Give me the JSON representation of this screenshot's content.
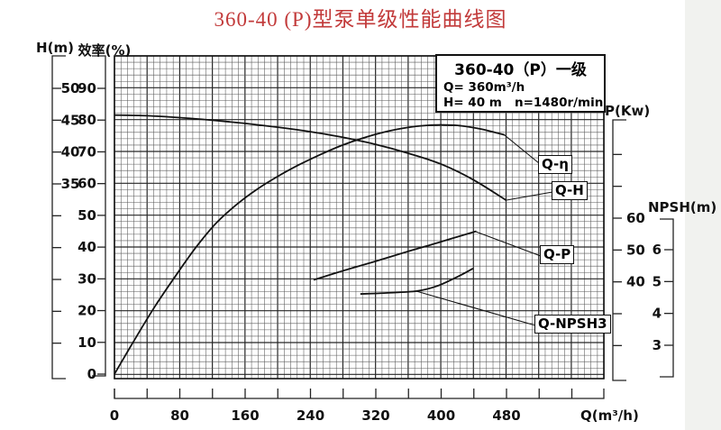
{
  "title": "360-40 (P)型泵单级性能曲线图",
  "colors": {
    "title_red": "#c23a3a",
    "curve_black": "#121212",
    "grid_gray": "#585858",
    "background": "#ffffff"
  },
  "info_box": {
    "title": "360-40（P）一级",
    "line_q": "Q= 360m³/h",
    "line_hn": "H= 40 m   n=1480r/min"
  },
  "chart_data": {
    "type": "line",
    "title": "360-40 (P)型泵单级性能曲线图",
    "grid": "on",
    "x_axis": {
      "label": "Q(m³/h)",
      "min": 0,
      "max": 600,
      "labeled_ticks": [
        0,
        80,
        160,
        240,
        320,
        400,
        480
      ],
      "minor_tick_step": 40,
      "last_tick": 560
    },
    "y_axes": [
      {
        "id": "H",
        "label": "H(m)",
        "side": "left",
        "labeled_ticks": [
          50,
          45,
          40,
          35
        ],
        "unlabeled_ticks": [
          30,
          25,
          20,
          15,
          10
        ]
      },
      {
        "id": "eta",
        "label": "效率(%)",
        "side": "left",
        "labeled_ticks": [
          90,
          80,
          70,
          60,
          50,
          40,
          30,
          20,
          10,
          0
        ],
        "unlabeled_ticks": []
      },
      {
        "id": "P",
        "label": "P(Kw)",
        "side": "right",
        "labeled_ticks": [
          60,
          50,
          40
        ],
        "unlabeled_ticks": [
          80,
          70,
          30,
          20
        ]
      },
      {
        "id": "NPSH",
        "label": "NPSH(m)",
        "side": "right",
        "labeled_ticks": [
          6,
          5,
          4,
          3
        ],
        "unlabeled_ticks": []
      }
    ],
    "series": [
      {
        "name": "Q-H",
        "y_axis": "H",
        "points": [
          [
            0,
            45.8
          ],
          [
            40,
            45.7
          ],
          [
            80,
            45.4
          ],
          [
            120,
            45.0
          ],
          [
            160,
            44.5
          ],
          [
            200,
            43.9
          ],
          [
            240,
            43.2
          ],
          [
            280,
            42.3
          ],
          [
            320,
            41.2
          ],
          [
            360,
            39.8
          ],
          [
            400,
            38.1
          ],
          [
            440,
            35.6
          ],
          [
            480,
            32.4
          ]
        ]
      },
      {
        "name": "Q-η",
        "y_axis": "eta",
        "points": [
          [
            0,
            0
          ],
          [
            25,
            11
          ],
          [
            50,
            21.5
          ],
          [
            75,
            31
          ],
          [
            100,
            40
          ],
          [
            125,
            47.7
          ],
          [
            150,
            53.5
          ],
          [
            175,
            58.3
          ],
          [
            200,
            62.3
          ],
          [
            225,
            65.8
          ],
          [
            250,
            68.9
          ],
          [
            275,
            71.7
          ],
          [
            300,
            74.0
          ],
          [
            325,
            75.9
          ],
          [
            350,
            77.3
          ],
          [
            375,
            78.2
          ],
          [
            400,
            78.5
          ],
          [
            425,
            78.2
          ],
          [
            450,
            77.1
          ],
          [
            478,
            75.3
          ]
        ]
      },
      {
        "name": "Q-P",
        "y_axis": "P",
        "points": [
          [
            244,
            40.6
          ],
          [
            280,
            43.5
          ],
          [
            320,
            46.5
          ],
          [
            360,
            49.6
          ],
          [
            400,
            52.6
          ],
          [
            443,
            55.9
          ]
        ]
      },
      {
        "name": "Q-NPSH3",
        "y_axis": "NPSH",
        "points": [
          [
            301,
            4.61
          ],
          [
            330,
            4.64
          ],
          [
            370,
            4.7
          ],
          [
            395,
            4.86
          ],
          [
            420,
            5.15
          ],
          [
            439,
            5.41
          ]
        ]
      }
    ],
    "rated_point": {
      "Q_m3h": 360,
      "H_m": 40,
      "speed": "n=1480r/min"
    }
  }
}
